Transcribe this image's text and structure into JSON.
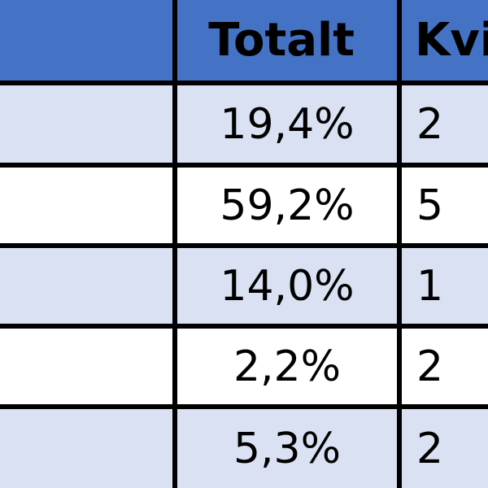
{
  "table": {
    "headers": [
      "",
      "Totalt",
      "Kvi"
    ],
    "rows": [
      {
        "label": "",
        "totalt": "19,4%",
        "kvi": "2",
        "shaded": true
      },
      {
        "label": "",
        "totalt": "59,2%",
        "kvi": "5",
        "shaded": false
      },
      {
        "label": "",
        "totalt": "14,0%",
        "kvi": "1",
        "shaded": true
      },
      {
        "label": "",
        "totalt": "2,2%",
        "kvi": "2",
        "shaded": false
      },
      {
        "label": "",
        "totalt": "5,3%",
        "kvi": "2",
        "shaded": true
      }
    ]
  },
  "colors": {
    "header": "#4472C4",
    "shaded_row": "#D9E1F2",
    "plain_row": "#FFFFFF",
    "grid": "#000000"
  }
}
